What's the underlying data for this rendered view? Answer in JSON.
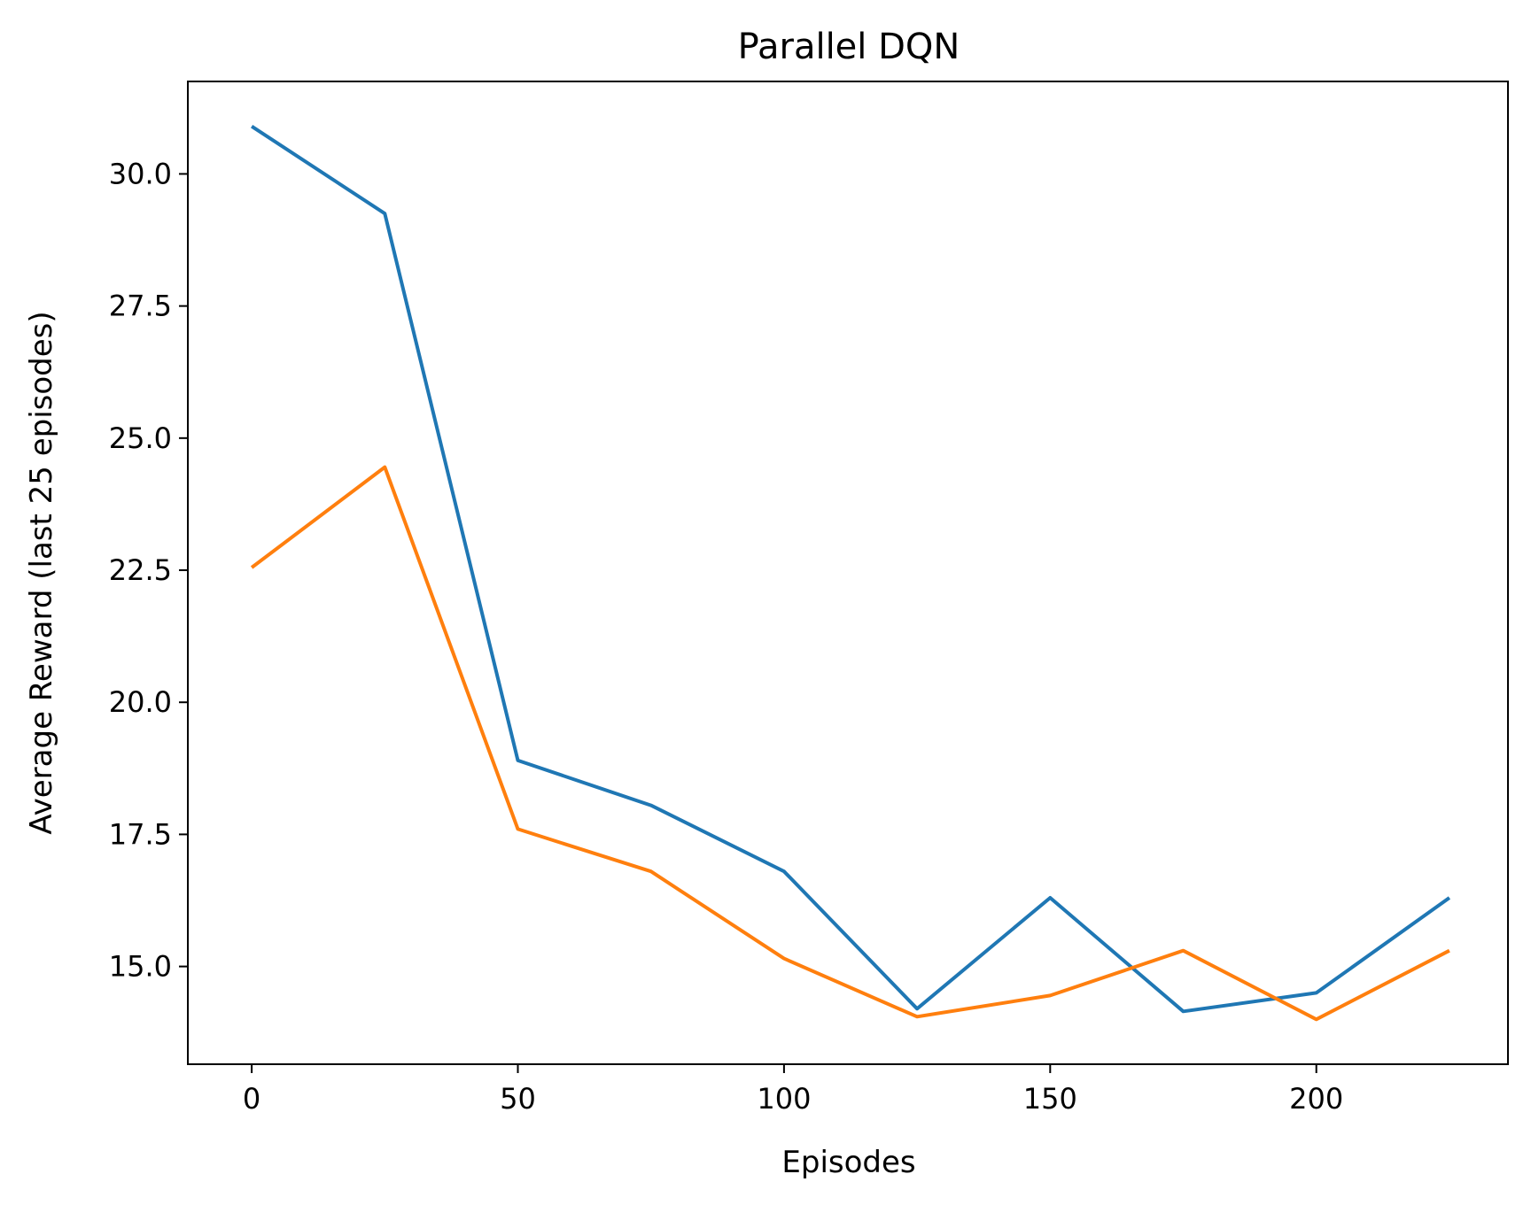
{
  "chart_data": {
    "type": "line",
    "title": "Parallel DQN",
    "xlabel": "Episodes",
    "ylabel": "Average Reward (last 25 episodes)",
    "xlim": [
      -12,
      236
    ],
    "ylim": [
      13.15,
      31.75
    ],
    "xticks": [
      0,
      50,
      100,
      150,
      200
    ],
    "xtick_labels": [
      "0",
      "50",
      "100",
      "150",
      "200"
    ],
    "yticks": [
      15.0,
      17.5,
      20.0,
      22.5,
      25.0,
      27.5,
      30.0
    ],
    "ytick_labels": [
      "15.0",
      "17.5",
      "20.0",
      "22.5",
      "25.0",
      "27.5",
      "30.0"
    ],
    "grid": false,
    "legend": "none",
    "x": [
      0,
      25,
      50,
      75,
      100,
      125,
      150,
      175,
      200,
      225
    ],
    "series": [
      {
        "color": "#1f77b4",
        "values": [
          30.9,
          29.25,
          18.9,
          18.05,
          16.8,
          14.2,
          16.3,
          14.15,
          14.5,
          16.3
        ]
      },
      {
        "color": "#ff7f0e",
        "values": [
          22.55,
          24.45,
          17.6,
          16.8,
          15.15,
          14.05,
          14.45,
          15.3,
          14.0,
          15.3
        ]
      }
    ]
  }
}
